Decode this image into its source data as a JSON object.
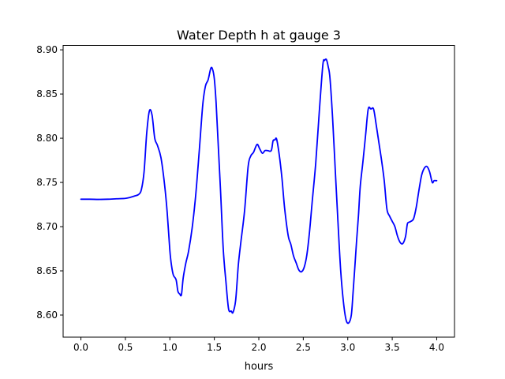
{
  "chart_data": {
    "type": "line",
    "title": "Water Depth h at gauge 3",
    "xlabel": "hours",
    "ylabel": "",
    "xlim": [
      -0.2,
      4.2
    ],
    "ylim": [
      8.575,
      8.905
    ],
    "xticks": [
      0.0,
      0.5,
      1.0,
      1.5,
      2.0,
      2.5,
      3.0,
      3.5,
      4.0
    ],
    "xtick_labels": [
      "0.0",
      "0.5",
      "1.0",
      "1.5",
      "2.0",
      "2.5",
      "3.0",
      "3.5",
      "4.0"
    ],
    "yticks": [
      8.6,
      8.65,
      8.7,
      8.75,
      8.8,
      8.85,
      8.9
    ],
    "ytick_labels": [
      "8.60",
      "8.65",
      "8.70",
      "8.75",
      "8.80",
      "8.85",
      "8.90"
    ],
    "grid": false,
    "series": [
      {
        "color": "#0000ff",
        "x": [
          0.0,
          0.1,
          0.2,
          0.3,
          0.4,
          0.5,
          0.55,
          0.6,
          0.65,
          0.68,
          0.71,
          0.74,
          0.77,
          0.8,
          0.83,
          0.86,
          0.9,
          0.94,
          0.97,
          1.0,
          1.02,
          1.04,
          1.07,
          1.09,
          1.11,
          1.13,
          1.15,
          1.18,
          1.21,
          1.25,
          1.29,
          1.33,
          1.37,
          1.4,
          1.43,
          1.46,
          1.48,
          1.5,
          1.52,
          1.54,
          1.57,
          1.6,
          1.63,
          1.66,
          1.69,
          1.71,
          1.74,
          1.77,
          1.8,
          1.84,
          1.88,
          1.91,
          1.94,
          1.98,
          2.01,
          2.04,
          2.07,
          2.1,
          2.14,
          2.16,
          2.18,
          2.2,
          2.23,
          2.26,
          2.29,
          2.33,
          2.36,
          2.39,
          2.42,
          2.45,
          2.48,
          2.51,
          2.54,
          2.57,
          2.6,
          2.64,
          2.68,
          2.72,
          2.74,
          2.76,
          2.78,
          2.8,
          2.83,
          2.86,
          2.89,
          2.92,
          2.95,
          2.98,
          3.01,
          3.04,
          3.06,
          3.08,
          3.1,
          3.12,
          3.14,
          3.17,
          3.2,
          3.23,
          3.26,
          3.29,
          3.32,
          3.35,
          3.38,
          3.41,
          3.44,
          3.47,
          3.5,
          3.53,
          3.56,
          3.59,
          3.62,
          3.65,
          3.67,
          3.69,
          3.71,
          3.74,
          3.77,
          3.8,
          3.83,
          3.86,
          3.89,
          3.92,
          3.95,
          3.97,
          3.99,
          4.0
        ],
        "values": [
          8.731,
          8.731,
          8.7308,
          8.731,
          8.7315,
          8.732,
          8.733,
          8.7345,
          8.7365,
          8.742,
          8.762,
          8.806,
          8.831,
          8.826,
          8.8,
          8.792,
          8.778,
          8.748,
          8.716,
          8.673,
          8.655,
          8.645,
          8.64,
          8.627,
          8.624,
          8.623,
          8.642,
          8.659,
          8.672,
          8.698,
          8.735,
          8.785,
          8.838,
          8.859,
          8.866,
          8.879,
          8.878,
          8.867,
          8.84,
          8.8,
          8.74,
          8.675,
          8.638,
          8.607,
          8.6045,
          8.603,
          8.617,
          8.657,
          8.684,
          8.718,
          8.768,
          8.78,
          8.784,
          8.793,
          8.788,
          8.783,
          8.786,
          8.786,
          8.786,
          8.797,
          8.798,
          8.799,
          8.781,
          8.755,
          8.721,
          8.69,
          8.68,
          8.667,
          8.659,
          8.651,
          8.649,
          8.654,
          8.668,
          8.694,
          8.728,
          8.772,
          8.83,
          8.883,
          8.888,
          8.889,
          8.881,
          8.868,
          8.822,
          8.763,
          8.705,
          8.651,
          8.616,
          8.595,
          8.591,
          8.6,
          8.626,
          8.655,
          8.685,
          8.712,
          8.745,
          8.773,
          8.803,
          8.833,
          8.833,
          8.833,
          8.815,
          8.795,
          8.775,
          8.752,
          8.72,
          8.712,
          8.706,
          8.7,
          8.689,
          8.682,
          8.681,
          8.689,
          8.703,
          8.705,
          8.706,
          8.709,
          8.722,
          8.741,
          8.758,
          8.766,
          8.768,
          8.762,
          8.75,
          8.752,
          8.752,
          8.752
        ]
      }
    ]
  }
}
